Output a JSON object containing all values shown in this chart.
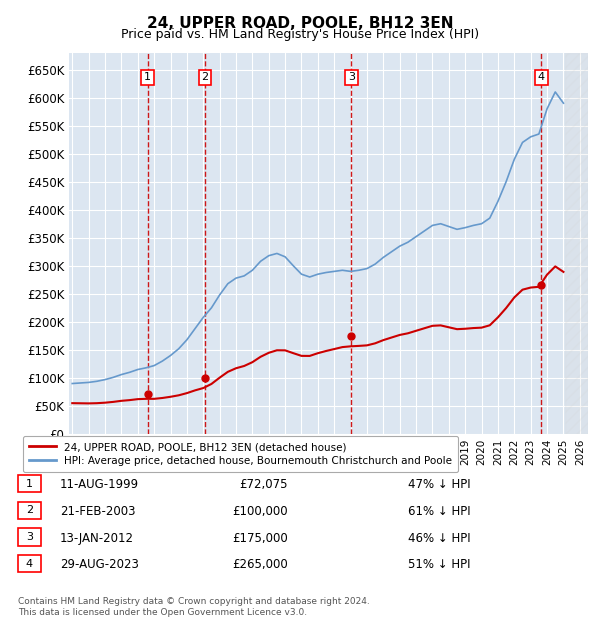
{
  "title": "24, UPPER ROAD, POOLE, BH12 3EN",
  "subtitle": "Price paid vs. HM Land Registry's House Price Index (HPI)",
  "transactions": [
    {
      "num": 1,
      "date": "11-AUG-1999",
      "year": 1999.6,
      "price": 72075,
      "price_str": "£72,075",
      "pct": "47% ↓ HPI"
    },
    {
      "num": 2,
      "date": "21-FEB-2003",
      "year": 2003.1,
      "price": 100000,
      "price_str": "£100,000",
      "pct": "61% ↓ HPI"
    },
    {
      "num": 3,
      "date": "13-JAN-2012",
      "year": 2012.05,
      "price": 175000,
      "price_str": "£175,000",
      "pct": "46% ↓ HPI"
    },
    {
      "num": 4,
      "date": "29-AUG-2023",
      "year": 2023.65,
      "price": 265000,
      "price_str": "£265,000",
      "pct": "51% ↓ HPI"
    }
  ],
  "hpi_color": "#6699cc",
  "price_color": "#cc0000",
  "vline_color": "#cc0000",
  "background_color": "#dce6f1",
  "legend_label_price": "24, UPPER ROAD, POOLE, BH12 3EN (detached house)",
  "legend_label_hpi": "HPI: Average price, detached house, Bournemouth Christchurch and Poole",
  "footer": "Contains HM Land Registry data © Crown copyright and database right 2024.\nThis data is licensed under the Open Government Licence v3.0.",
  "ylim": [
    0,
    680000
  ],
  "xlim_start": 1994.8,
  "xlim_end": 2026.5,
  "years_hpi": [
    1995.0,
    1995.5,
    1996.0,
    1996.5,
    1997.0,
    1997.5,
    1998.0,
    1998.5,
    1999.0,
    1999.5,
    2000.0,
    2000.5,
    2001.0,
    2001.5,
    2002.0,
    2002.5,
    2003.0,
    2003.5,
    2004.0,
    2004.5,
    2005.0,
    2005.5,
    2006.0,
    2006.5,
    2007.0,
    2007.5,
    2008.0,
    2008.5,
    2009.0,
    2009.5,
    2010.0,
    2010.5,
    2011.0,
    2011.5,
    2012.0,
    2012.5,
    2013.0,
    2013.5,
    2014.0,
    2014.5,
    2015.0,
    2015.5,
    2016.0,
    2016.5,
    2017.0,
    2017.5,
    2018.0,
    2018.5,
    2019.0,
    2019.5,
    2020.0,
    2020.5,
    2021.0,
    2021.5,
    2022.0,
    2022.5,
    2023.0,
    2023.5,
    2024.0,
    2024.5,
    2025.0
  ],
  "hpi_values": [
    90000,
    91000,
    92000,
    94000,
    97000,
    101000,
    106000,
    110000,
    115000,
    118000,
    122000,
    130000,
    140000,
    152000,
    168000,
    188000,
    208000,
    225000,
    248000,
    268000,
    278000,
    282000,
    292000,
    308000,
    318000,
    322000,
    316000,
    300000,
    285000,
    280000,
    285000,
    288000,
    290000,
    292000,
    290000,
    292000,
    295000,
    303000,
    315000,
    325000,
    335000,
    342000,
    352000,
    362000,
    372000,
    375000,
    370000,
    365000,
    368000,
    372000,
    375000,
    385000,
    415000,
    450000,
    490000,
    520000,
    530000,
    535000,
    580000,
    610000,
    590000
  ],
  "tx_years_interp": [
    1995.0,
    1999.6,
    2003.1,
    2012.05,
    2023.65,
    2026.5
  ],
  "tx_ratios_interp": [
    0.611,
    0.53,
    0.39,
    0.54,
    0.49,
    0.49
  ]
}
